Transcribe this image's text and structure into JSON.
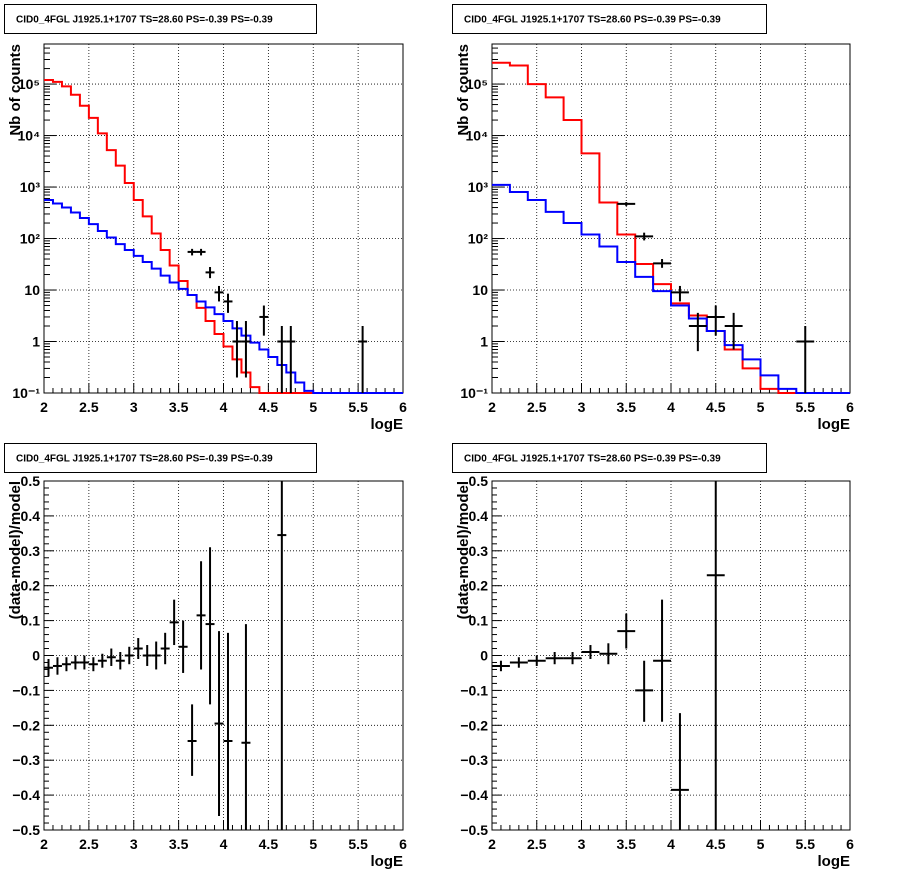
{
  "chart_data": [
    {
      "type": "line",
      "title": "CID0_4FGL J1925.1+1707 TS=28.60 PS=-0.39 PS=-0.39",
      "xlabel": "logE",
      "ylabel": "Nb of counts",
      "xlim": [
        2,
        6
      ],
      "ylim": [
        0.1,
        600000
      ],
      "yscale": "log",
      "grid": true,
      "xticks": [
        "2",
        "2.5",
        "3",
        "3.5",
        "4",
        "4.5",
        "5",
        "5.5",
        "6"
      ],
      "yticks": [
        {
          "value": 0.1,
          "label": "10⁻¹"
        },
        {
          "value": 1,
          "label": "1"
        },
        {
          "value": 10,
          "label": "10"
        },
        {
          "value": 100,
          "label": "10²"
        },
        {
          "value": 1000,
          "label": "10³"
        },
        {
          "value": 10000,
          "label": "10⁴"
        },
        {
          "value": 100000,
          "label": "10⁵"
        }
      ],
      "series": [
        {
          "style": "step",
          "color": "#ff0000",
          "bin_edges_start": 2.0,
          "bin_width": 0.1,
          "values": [
            120000,
            110000,
            90000,
            62000,
            38000,
            22000,
            11000,
            5200,
            2600,
            1200,
            560,
            270,
            125,
            60,
            30,
            15,
            8,
            4.5,
            2.5,
            1.4,
            0.8,
            0.45,
            0.25,
            0.13,
            0.1,
            0.1,
            0.1,
            0.1,
            0.1,
            0.1,
            0.1,
            0.1,
            0.1,
            0.1,
            0.1,
            0.1,
            0.1,
            0.1,
            0.1,
            0.1
          ]
        },
        {
          "style": "step",
          "color": "#0000ff",
          "bin_edges_start": 2.0,
          "bin_width": 0.1,
          "values": [
            560,
            480,
            400,
            320,
            250,
            190,
            140,
            105,
            78,
            60,
            46,
            35,
            26,
            19,
            14,
            10.5,
            8,
            6,
            4.6,
            3.4,
            2.5,
            1.8,
            1.3,
            0.95,
            0.7,
            0.5,
            0.35,
            0.25,
            0.16,
            0.11,
            0.1,
            0.1,
            0.1,
            0.1,
            0.1,
            0.1,
            0.1,
            0.1,
            0.1,
            0.1
          ]
        }
      ],
      "points": [
        {
          "x": 3.65,
          "y": 55,
          "xerr": 0.05,
          "ylow": 47,
          "yhigh": 63
        },
        {
          "x": 3.75,
          "y": 55,
          "xerr": 0.05,
          "ylow": 47,
          "yhigh": 63
        },
        {
          "x": 3.85,
          "y": 22,
          "xerr": 0.05,
          "ylow": 17,
          "yhigh": 28
        },
        {
          "x": 3.95,
          "y": 9,
          "xerr": 0.05,
          "ylow": 6,
          "yhigh": 12
        },
        {
          "x": 4.05,
          "y": 6,
          "xerr": 0.05,
          "ylow": 3.6,
          "yhigh": 8.5
        },
        {
          "x": 4.15,
          "y": 1,
          "xerr": 0.05,
          "ylow": 0.2,
          "yhigh": 2.5
        },
        {
          "x": 4.25,
          "y": 1,
          "xerr": 0.05,
          "ylow": 0.2,
          "yhigh": 2.5
        },
        {
          "x": 4.45,
          "y": 3,
          "xerr": 0.05,
          "ylow": 1.3,
          "yhigh": 5
        },
        {
          "x": 4.65,
          "y": 1,
          "xerr": 0.05,
          "ylow": 0.1,
          "yhigh": 2
        },
        {
          "x": 4.75,
          "y": 1,
          "xerr": 0.05,
          "ylow": 0.1,
          "yhigh": 2
        },
        {
          "x": 5.55,
          "y": 1,
          "xerr": 0.05,
          "ylow": 0.1,
          "yhigh": 2
        }
      ]
    },
    {
      "type": "line",
      "title": "CID0_4FGL J1925.1+1707 TS=28.60 PS=-0.39 PS=-0.39",
      "xlabel": "logE",
      "ylabel": "Nb of counts",
      "xlim": [
        2,
        6
      ],
      "ylim": [
        0.1,
        600000
      ],
      "yscale": "log",
      "grid": true,
      "xticks": [
        "2",
        "2.5",
        "3",
        "3.5",
        "4",
        "4.5",
        "5",
        "5.5",
        "6"
      ],
      "yticks": [
        {
          "value": 0.1,
          "label": "10⁻¹"
        },
        {
          "value": 1,
          "label": "1"
        },
        {
          "value": 10,
          "label": "10"
        },
        {
          "value": 100,
          "label": "10²"
        },
        {
          "value": 1000,
          "label": "10³"
        },
        {
          "value": 10000,
          "label": "10⁴"
        },
        {
          "value": 100000,
          "label": "10⁵"
        }
      ],
      "series": [
        {
          "style": "step",
          "color": "#ff0000",
          "bin_edges_start": 2.0,
          "bin_width": 0.2,
          "values": [
            260000,
            230000,
            100000,
            55000,
            20000,
            4500,
            500,
            120,
            32,
            13,
            5.5,
            3.2,
            1.6,
            0.7,
            0.3,
            0.12,
            0.1,
            0.1,
            0.1,
            0.1
          ]
        },
        {
          "style": "step",
          "color": "#0000ff",
          "bin_edges_start": 2.0,
          "bin_width": 0.2,
          "values": [
            1100,
            800,
            560,
            330,
            200,
            120,
            70,
            35,
            18,
            9.5,
            5,
            2.8,
            1.6,
            0.85,
            0.45,
            0.22,
            0.12,
            0.1,
            0.1,
            0.1
          ]
        }
      ],
      "points": [
        {
          "x": 3.5,
          "y": 470,
          "xerr": 0.1,
          "ylow": 430,
          "yhigh": 510
        },
        {
          "x": 3.7,
          "y": 110,
          "xerr": 0.1,
          "ylow": 92,
          "yhigh": 130
        },
        {
          "x": 3.9,
          "y": 33,
          "xerr": 0.1,
          "ylow": 27,
          "yhigh": 40
        },
        {
          "x": 4.1,
          "y": 9,
          "xerr": 0.1,
          "ylow": 6,
          "yhigh": 12
        },
        {
          "x": 4.3,
          "y": 2,
          "xerr": 0.1,
          "ylow": 0.65,
          "yhigh": 3.6
        },
        {
          "x": 4.5,
          "y": 3,
          "xerr": 0.1,
          "ylow": 1.3,
          "yhigh": 5
        },
        {
          "x": 4.7,
          "y": 2,
          "xerr": 0.1,
          "ylow": 0.7,
          "yhigh": 3.6
        },
        {
          "x": 5.5,
          "y": 1,
          "xerr": 0.1,
          "ylow": 0.1,
          "yhigh": 2
        }
      ]
    },
    {
      "type": "scatter",
      "title": "CID0_4FGL J1925.1+1707 TS=28.60 PS=-0.39 PS=-0.39",
      "xlabel": "logE",
      "ylabel": "(data-model)/model",
      "xlim": [
        2,
        6
      ],
      "ylim": [
        -0.5,
        0.5
      ],
      "yscale": "linear",
      "grid": true,
      "xticks": [
        "2",
        "2.5",
        "3",
        "3.5",
        "4",
        "4.5",
        "5",
        "5.5",
        "6"
      ],
      "yticks": [
        {
          "value": -0.5,
          "label": "−0.5"
        },
        {
          "value": -0.4,
          "label": "−0.4"
        },
        {
          "value": -0.3,
          "label": "−0.3"
        },
        {
          "value": -0.2,
          "label": "−0.2"
        },
        {
          "value": -0.1,
          "label": "−0.1"
        },
        {
          "value": 0,
          "label": "0"
        },
        {
          "value": 0.1,
          "label": "0.1"
        },
        {
          "value": 0.2,
          "label": "0.2"
        },
        {
          "value": 0.3,
          "label": "0.3"
        },
        {
          "value": 0.4,
          "label": "0.4"
        },
        {
          "value": 0.5,
          "label": "0.5"
        }
      ],
      "points": [
        {
          "x": 2.05,
          "y": -0.035,
          "xerr": 0.05,
          "ylow": -0.06,
          "yhigh": -0.01
        },
        {
          "x": 2.15,
          "y": -0.03,
          "xerr": 0.05,
          "ylow": -0.055,
          "yhigh": -0.005
        },
        {
          "x": 2.25,
          "y": -0.025,
          "xerr": 0.05,
          "ylow": -0.045,
          "yhigh": -0.005
        },
        {
          "x": 2.35,
          "y": -0.02,
          "xerr": 0.05,
          "ylow": -0.04,
          "yhigh": 0.0
        },
        {
          "x": 2.45,
          "y": -0.02,
          "xerr": 0.05,
          "ylow": -0.04,
          "yhigh": 0.0
        },
        {
          "x": 2.55,
          "y": -0.025,
          "xerr": 0.05,
          "ylow": -0.045,
          "yhigh": -0.005
        },
        {
          "x": 2.65,
          "y": -0.015,
          "xerr": 0.05,
          "ylow": -0.035,
          "yhigh": 0.005
        },
        {
          "x": 2.75,
          "y": -0.005,
          "xerr": 0.05,
          "ylow": -0.03,
          "yhigh": 0.02
        },
        {
          "x": 2.85,
          "y": -0.015,
          "xerr": 0.05,
          "ylow": -0.04,
          "yhigh": 0.01
        },
        {
          "x": 2.95,
          "y": 0.0,
          "xerr": 0.05,
          "ylow": -0.025,
          "yhigh": 0.025
        },
        {
          "x": 3.05,
          "y": 0.02,
          "xerr": 0.05,
          "ylow": -0.01,
          "yhigh": 0.05
        },
        {
          "x": 3.15,
          "y": 0.0,
          "xerr": 0.05,
          "ylow": -0.03,
          "yhigh": 0.03
        },
        {
          "x": 3.25,
          "y": 0.0,
          "xerr": 0.05,
          "ylow": -0.04,
          "yhigh": 0.04
        },
        {
          "x": 3.35,
          "y": 0.02,
          "xerr": 0.05,
          "ylow": -0.025,
          "yhigh": 0.065
        },
        {
          "x": 3.45,
          "y": 0.095,
          "xerr": 0.05,
          "ylow": 0.03,
          "yhigh": 0.16
        },
        {
          "x": 3.55,
          "y": 0.025,
          "xerr": 0.05,
          "ylow": -0.05,
          "yhigh": 0.1
        },
        {
          "x": 3.65,
          "y": -0.245,
          "xerr": 0.05,
          "ylow": -0.345,
          "yhigh": -0.14
        },
        {
          "x": 3.75,
          "y": 0.115,
          "xerr": 0.05,
          "ylow": -0.04,
          "yhigh": 0.27
        },
        {
          "x": 3.85,
          "y": 0.09,
          "xerr": 0.05,
          "ylow": -0.14,
          "yhigh": 0.31
        },
        {
          "x": 3.95,
          "y": -0.195,
          "xerr": 0.05,
          "ylow": -0.46,
          "yhigh": 0.07
        },
        {
          "x": 4.05,
          "y": -0.245,
          "xerr": 0.05,
          "ylow": -0.5,
          "yhigh": 0.065
        },
        {
          "x": 4.25,
          "y": -0.25,
          "xerr": 0.05,
          "ylow": -0.5,
          "yhigh": 0.09
        },
        {
          "x": 4.65,
          "y": 0.345,
          "xerr": 0.05,
          "ylow": -0.5,
          "yhigh": 0.5
        }
      ]
    },
    {
      "type": "scatter",
      "title": "CID0_4FGL J1925.1+1707 TS=28.60 PS=-0.39 PS=-0.39",
      "xlabel": "logE",
      "ylabel": "(data-model)/model",
      "xlim": [
        2,
        6
      ],
      "ylim": [
        -0.5,
        0.5
      ],
      "yscale": "linear",
      "grid": true,
      "xticks": [
        "2",
        "2.5",
        "3",
        "3.5",
        "4",
        "4.5",
        "5",
        "5.5",
        "6"
      ],
      "yticks": [
        {
          "value": -0.5,
          "label": "−0.5"
        },
        {
          "value": -0.4,
          "label": "−0.4"
        },
        {
          "value": -0.3,
          "label": "−0.3"
        },
        {
          "value": -0.2,
          "label": "−0.2"
        },
        {
          "value": -0.1,
          "label": "−0.1"
        },
        {
          "value": 0,
          "label": "0"
        },
        {
          "value": 0.1,
          "label": "0.1"
        },
        {
          "value": 0.2,
          "label": "0.2"
        },
        {
          "value": 0.3,
          "label": "0.3"
        },
        {
          "value": 0.4,
          "label": "0.4"
        },
        {
          "value": 0.5,
          "label": "0.5"
        }
      ],
      "points": [
        {
          "x": 2.1,
          "y": -0.03,
          "xerr": 0.1,
          "ylow": -0.045,
          "yhigh": -0.015
        },
        {
          "x": 2.3,
          "y": -0.02,
          "xerr": 0.1,
          "ylow": -0.035,
          "yhigh": -0.005
        },
        {
          "x": 2.5,
          "y": -0.015,
          "xerr": 0.1,
          "ylow": -0.03,
          "yhigh": 0.0
        },
        {
          "x": 2.7,
          "y": -0.008,
          "xerr": 0.1,
          "ylow": -0.025,
          "yhigh": 0.01
        },
        {
          "x": 2.9,
          "y": -0.008,
          "xerr": 0.1,
          "ylow": -0.025,
          "yhigh": 0.01
        },
        {
          "x": 3.1,
          "y": 0.01,
          "xerr": 0.1,
          "ylow": -0.01,
          "yhigh": 0.03
        },
        {
          "x": 3.3,
          "y": 0.005,
          "xerr": 0.1,
          "ylow": -0.025,
          "yhigh": 0.035
        },
        {
          "x": 3.5,
          "y": 0.07,
          "xerr": 0.1,
          "ylow": 0.02,
          "yhigh": 0.12
        },
        {
          "x": 3.7,
          "y": -0.1,
          "xerr": 0.1,
          "ylow": -0.19,
          "yhigh": -0.015
        },
        {
          "x": 3.9,
          "y": -0.015,
          "xerr": 0.1,
          "ylow": -0.19,
          "yhigh": 0.16
        },
        {
          "x": 4.1,
          "y": -0.385,
          "xerr": 0.1,
          "ylow": -0.5,
          "yhigh": -0.165
        },
        {
          "x": 4.5,
          "y": 0.23,
          "xerr": 0.1,
          "ylow": -0.5,
          "yhigh": 0.5
        }
      ]
    }
  ]
}
